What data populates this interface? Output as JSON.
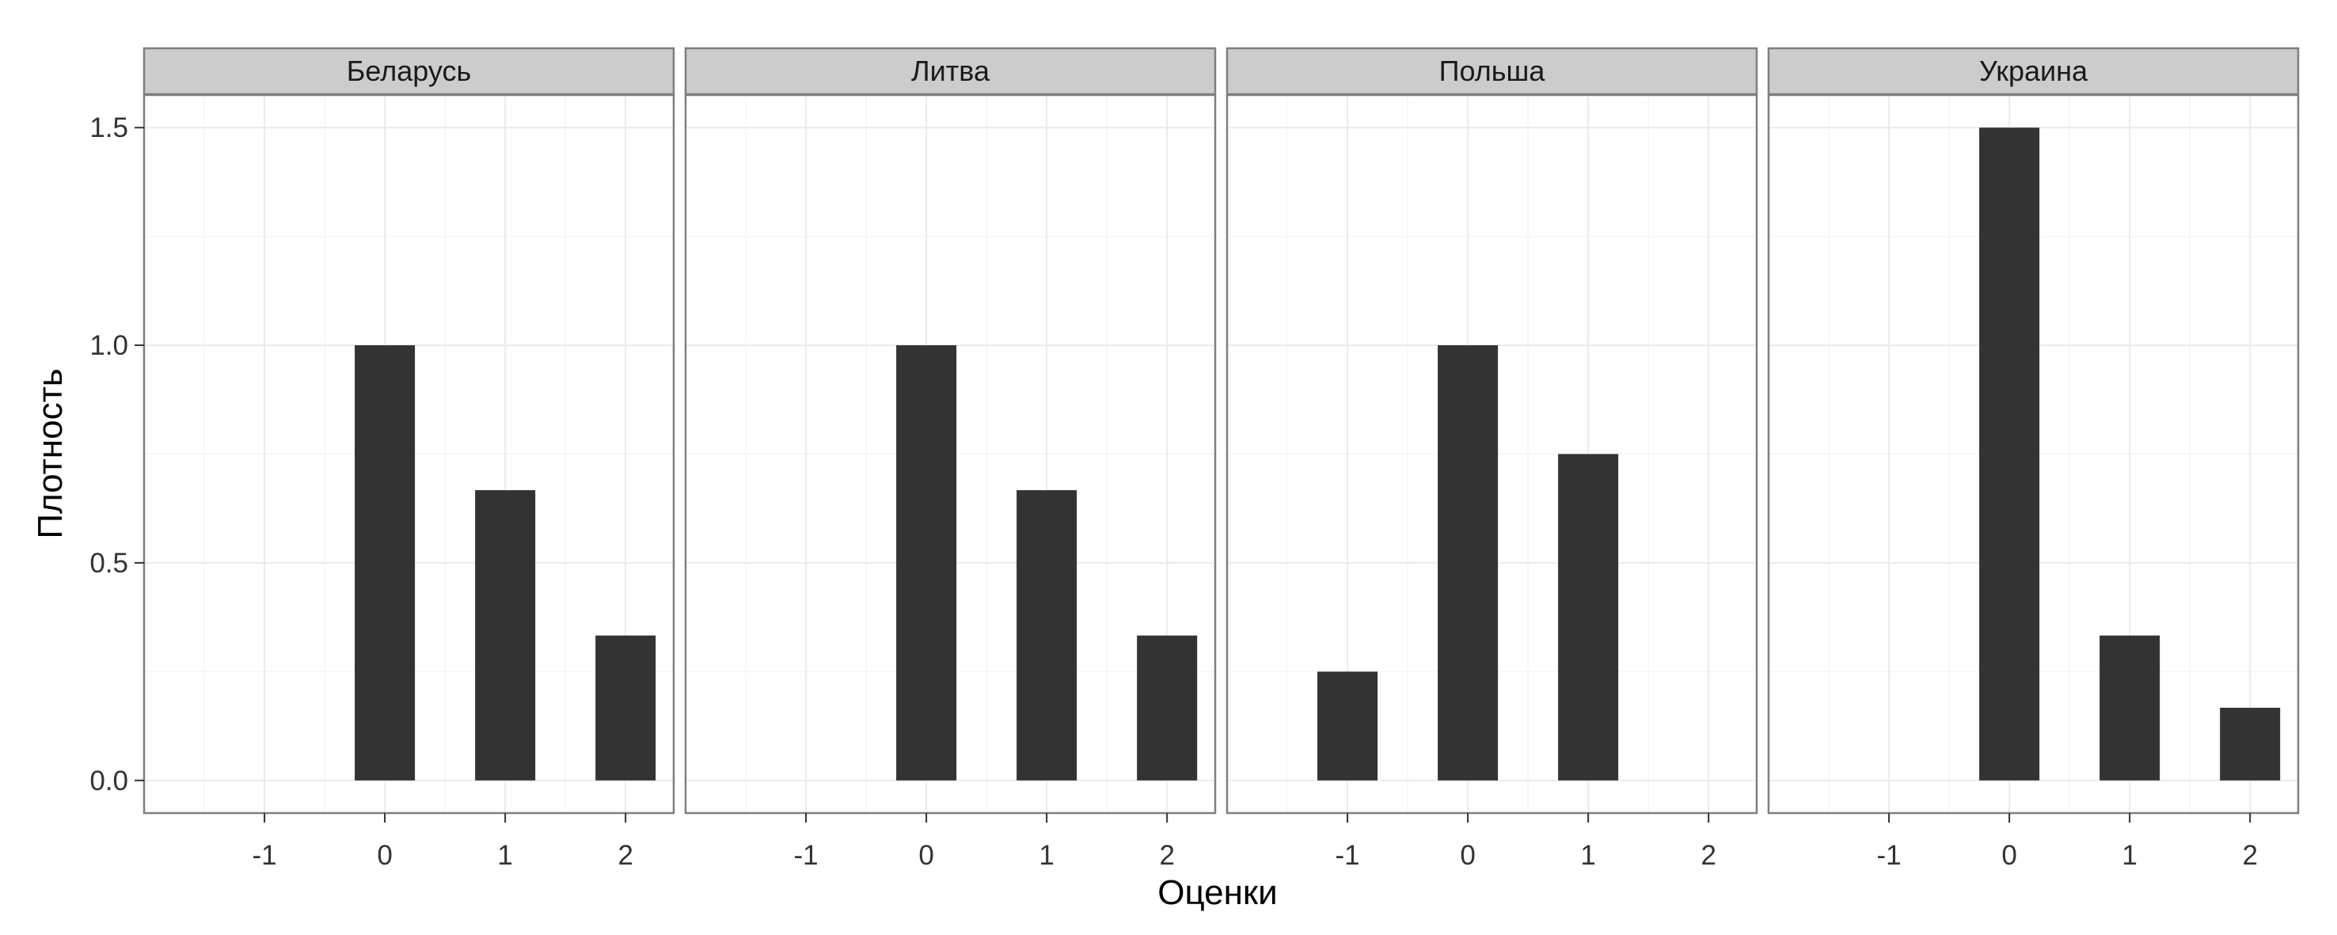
{
  "chart_data": {
    "type": "bar",
    "xlabel": "Оценки",
    "ylabel": "Плотность",
    "xlim": [
      -2,
      2.4
    ],
    "ylim": [
      -0.075,
      1.575
    ],
    "x_ticks": [
      "-1",
      "0",
      "1",
      "2"
    ],
    "y_ticks": [
      "0.0",
      "0.5",
      "1.0",
      "1.5"
    ],
    "bar_color": "#333333",
    "strip_fill": "#cccccc",
    "grid": true,
    "panels": [
      {
        "name": "Беларусь",
        "bars": [
          {
            "x": 0,
            "y": 1.0
          },
          {
            "x": 1,
            "y": 0.667
          },
          {
            "x": 2,
            "y": 0.333
          }
        ]
      },
      {
        "name": "Литва",
        "bars": [
          {
            "x": 0,
            "y": 1.0
          },
          {
            "x": 1,
            "y": 0.667
          },
          {
            "x": 2,
            "y": 0.333
          }
        ]
      },
      {
        "name": "Польша",
        "bars": [
          {
            "x": -1,
            "y": 0.25
          },
          {
            "x": 0,
            "y": 1.0
          },
          {
            "x": 1,
            "y": 0.75
          }
        ]
      },
      {
        "name": "Украина",
        "bars": [
          {
            "x": 0,
            "y": 1.5
          },
          {
            "x": 1,
            "y": 0.333
          },
          {
            "x": 2,
            "y": 0.167
          }
        ]
      }
    ]
  }
}
